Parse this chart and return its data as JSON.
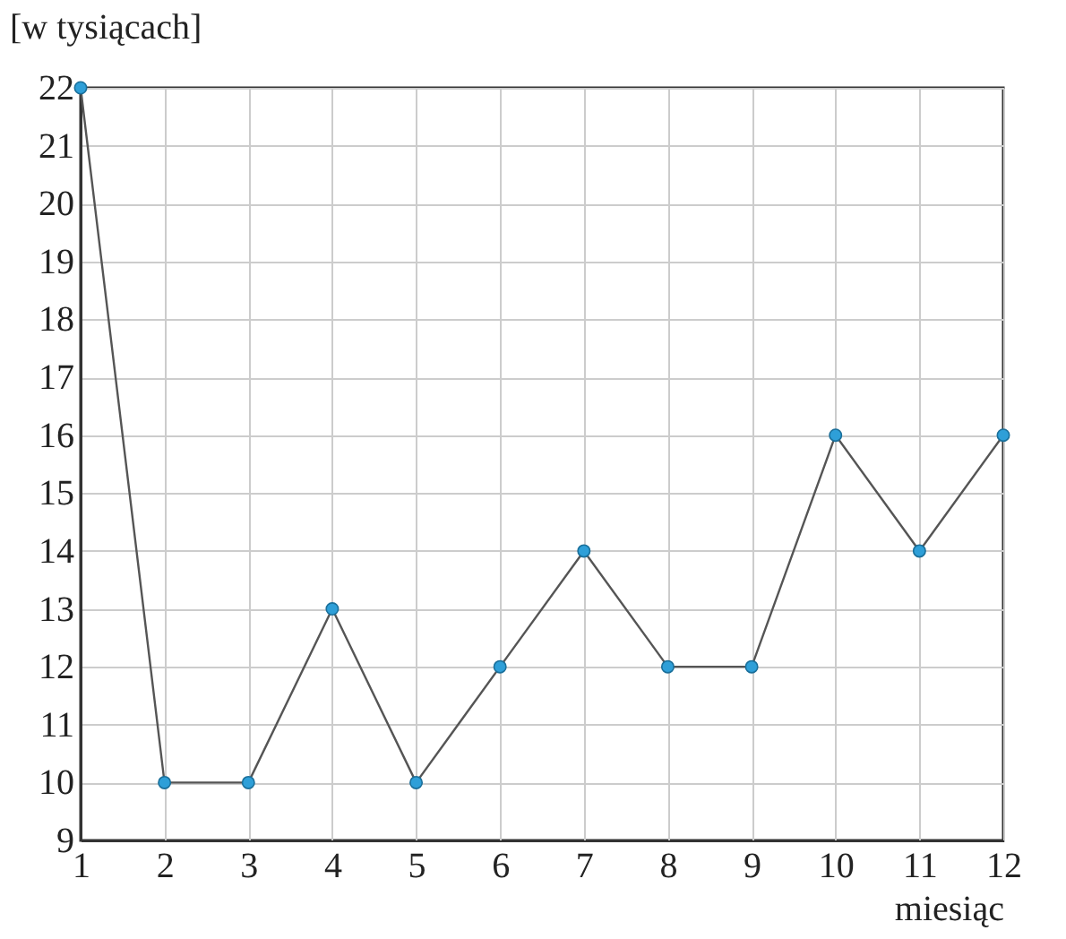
{
  "chart_data": {
    "type": "line",
    "ylabel": "[w tysiącach]",
    "xlabel": "miesiąc",
    "x": [
      1,
      2,
      3,
      4,
      5,
      6,
      7,
      8,
      9,
      10,
      11,
      12
    ],
    "series": [
      {
        "color": "#2e9fd8",
        "values": [
          22,
          10,
          10,
          13,
          10,
          12,
          14,
          12,
          12,
          16,
          14,
          16
        ]
      }
    ],
    "xlim": [
      1,
      12
    ],
    "xticks": [
      1,
      2,
      3,
      4,
      5,
      6,
      7,
      8,
      9,
      10,
      11,
      12
    ],
    "ylim": [
      9,
      22
    ],
    "yticks": [
      9,
      10,
      11,
      12,
      13,
      14,
      15,
      16,
      17,
      18,
      19,
      20,
      21,
      22
    ],
    "grid": true,
    "marker": "circle",
    "line_style": "solid",
    "legend": false
  }
}
